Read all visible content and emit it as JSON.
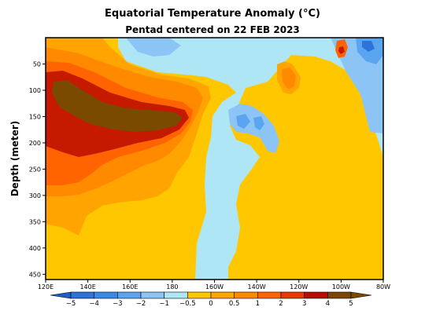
{
  "chart_data": {
    "type": "heatmap",
    "title": "Equatorial Temperature Anomaly (°C)",
    "subtitle": "Pentad centered on 22 FEB 2023",
    "xlabel": "",
    "ylabel": "Depth (meter)",
    "x_ticks": [
      "120E",
      "140E",
      "160E",
      "180",
      "160W",
      "140W",
      "120W",
      "100W",
      "80W"
    ],
    "x_lon_values": [
      120,
      140,
      160,
      180,
      200,
      220,
      240,
      260,
      280
    ],
    "xlim": [
      120,
      280
    ],
    "y_ticks": [
      "50",
      "100",
      "150",
      "200",
      "250",
      "300",
      "350",
      "400",
      "450"
    ],
    "y_values": [
      50,
      100,
      150,
      200,
      250,
      300,
      350,
      400,
      450
    ],
    "ylim": [
      0,
      460
    ],
    "y_inverted": true,
    "colorbar": {
      "labels": [
        "−5",
        "−4",
        "−3",
        "−2",
        "−1",
        "−0.5",
        "0",
        "0.5",
        "1",
        "2",
        "3",
        "4",
        "5"
      ],
      "levels": [
        -5,
        -4,
        -3,
        -2,
        -1,
        -0.5,
        0,
        0.5,
        1,
        2,
        3,
        4,
        5
      ],
      "colors": [
        "#1e5ec6",
        "#2d73d9",
        "#3c8ae8",
        "#5aa5f0",
        "#8cc4f6",
        "#aee6f5",
        "#ffc700",
        "#ffa400",
        "#ff8a00",
        "#ff6400",
        "#e83a00",
        "#b81000",
        "#7a4600",
        "#7a4a00"
      ]
    },
    "anomaly_regions": [
      {
        "level": 4,
        "description": "west Pacific 120E–175E, 110–170 m"
      },
      {
        "level": 3,
        "description": "west Pacific 120E–178E, 100–200 m"
      },
      {
        "level": 2,
        "description": "west Pacific 120E–185E, 80–260 m"
      },
      {
        "level": 1,
        "description": "near 100W–105W, 80–120 m"
      },
      {
        "level": -1,
        "description": "near 85W–95W, 30–60 m"
      },
      {
        "level": -0.5,
        "description": "east Pacific 150W–100W, 0–100 m and 130–250 m"
      }
    ]
  }
}
